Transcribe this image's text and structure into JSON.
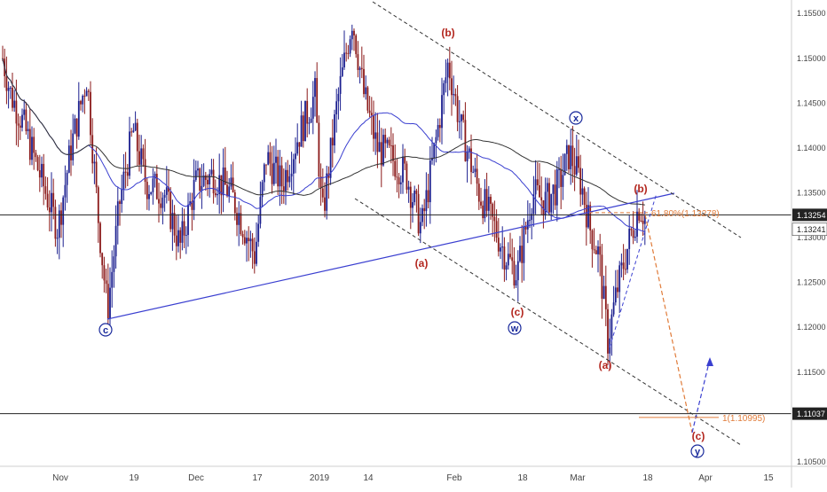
{
  "chart_data": {
    "type": "candlestick",
    "title": "",
    "ylim": [
      1.1045,
      1.1565
    ],
    "x_tick_labels": [
      "Nov",
      "19",
      "Dec",
      "17",
      "2019",
      "14",
      "Feb",
      "18",
      "Mar",
      "18",
      "Apr",
      "15"
    ],
    "y_tick_labels": [
      "1.15500",
      "1.15000",
      "1.14500",
      "1.14000",
      "1.13500",
      "1.13000",
      "1.12500",
      "1.12000",
      "1.11500",
      "1.10500"
    ],
    "y_tick_values": [
      1.155,
      1.15,
      1.145,
      1.14,
      1.135,
      1.13,
      1.125,
      1.12,
      1.115,
      1.105
    ],
    "price_tags": [
      {
        "label": "1.13254",
        "value": 1.13254,
        "style": "dark"
      },
      {
        "label": "1.13241",
        "value": 1.13241,
        "style": "light"
      },
      {
        "label": "1.11037",
        "value": 1.11037,
        "style": "dark"
      }
    ],
    "horizontal_lines": [
      {
        "value": 1.13254,
        "color": "#222222"
      },
      {
        "value": 1.11037,
        "color": "#222222"
      }
    ],
    "fib_levels": [
      {
        "label": "61.80%(1.13278)",
        "value": 1.13278
      },
      {
        "label": "1(1.10995)",
        "value": 1.10995
      }
    ],
    "wave_labels": [
      {
        "text": "c",
        "circled": true,
        "color": "#1a2a9c"
      },
      {
        "text": "(a)",
        "circled": false,
        "color": "#b3261e"
      },
      {
        "text": "(b)",
        "circled": false,
        "color": "#b3261e"
      },
      {
        "text": "(c)",
        "circled": false,
        "color": "#b3261e"
      },
      {
        "text": "w",
        "circled": true,
        "color": "#1a2a9c"
      },
      {
        "text": "x",
        "circled": true,
        "color": "#1a2a9c"
      },
      {
        "text": "(a)",
        "circled": false,
        "color": "#b3261e"
      },
      {
        "text": "(b)",
        "circled": false,
        "color": "#b3261e"
      },
      {
        "text": "(c)",
        "circled": false,
        "color": "#b3261e"
      },
      {
        "text": "y",
        "circled": true,
        "color": "#1a2a9c"
      }
    ],
    "colors": {
      "bull_candle": "#1b1f8f",
      "bear_candle": "#8b1a1a",
      "ma_fast": "#3a3fd0",
      "ma_slow": "#333333",
      "trendline": "#3a3fd0",
      "channel": "#333333",
      "projection": "#e07b39",
      "projection_alt": "#3a3fd0",
      "fib": "#e07b39"
    }
  }
}
